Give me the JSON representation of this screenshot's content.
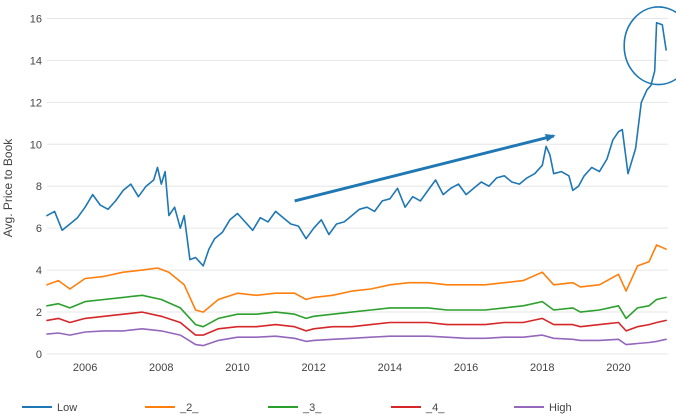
{
  "chart_data": {
    "type": "line",
    "ylabel": "Avg. Price to Book",
    "xlabel": "",
    "title": "",
    "ylim": [
      0,
      16.5
    ],
    "xlim": [
      2005.0,
      2021.3
    ],
    "yticks": [
      0,
      2,
      4,
      6,
      8,
      10,
      12,
      14,
      16
    ],
    "xticks": [
      2006,
      2008,
      2010,
      2012,
      2014,
      2016,
      2018,
      2020
    ],
    "grid": "horizontal",
    "legend_position": "bottom",
    "series": [
      {
        "name": "Low",
        "color": "#1f77b4",
        "points": [
          [
            2005.0,
            6.6
          ],
          [
            2005.2,
            6.8
          ],
          [
            2005.4,
            5.9
          ],
          [
            2005.6,
            6.2
          ],
          [
            2005.8,
            6.5
          ],
          [
            2006.0,
            7.0
          ],
          [
            2006.2,
            7.6
          ],
          [
            2006.4,
            7.1
          ],
          [
            2006.6,
            6.9
          ],
          [
            2006.8,
            7.3
          ],
          [
            2007.0,
            7.8
          ],
          [
            2007.2,
            8.1
          ],
          [
            2007.4,
            7.5
          ],
          [
            2007.6,
            8.0
          ],
          [
            2007.8,
            8.3
          ],
          [
            2007.9,
            8.9
          ],
          [
            2008.0,
            8.1
          ],
          [
            2008.1,
            8.7
          ],
          [
            2008.2,
            6.6
          ],
          [
            2008.35,
            7.0
          ],
          [
            2008.5,
            6.0
          ],
          [
            2008.6,
            6.6
          ],
          [
            2008.75,
            4.5
          ],
          [
            2008.9,
            4.6
          ],
          [
            2009.0,
            4.4
          ],
          [
            2009.1,
            4.2
          ],
          [
            2009.25,
            5.0
          ],
          [
            2009.4,
            5.5
          ],
          [
            2009.6,
            5.8
          ],
          [
            2009.8,
            6.4
          ],
          [
            2010.0,
            6.7
          ],
          [
            2010.2,
            6.3
          ],
          [
            2010.4,
            5.9
          ],
          [
            2010.6,
            6.5
          ],
          [
            2010.8,
            6.3
          ],
          [
            2011.0,
            6.8
          ],
          [
            2011.2,
            6.5
          ],
          [
            2011.4,
            6.2
          ],
          [
            2011.6,
            6.1
          ],
          [
            2011.8,
            5.5
          ],
          [
            2012.0,
            6.0
          ],
          [
            2012.2,
            6.4
          ],
          [
            2012.4,
            5.7
          ],
          [
            2012.6,
            6.2
          ],
          [
            2012.8,
            6.3
          ],
          [
            2013.0,
            6.6
          ],
          [
            2013.2,
            6.9
          ],
          [
            2013.4,
            7.0
          ],
          [
            2013.6,
            6.8
          ],
          [
            2013.8,
            7.3
          ],
          [
            2014.0,
            7.4
          ],
          [
            2014.2,
            7.9
          ],
          [
            2014.4,
            7.0
          ],
          [
            2014.6,
            7.5
          ],
          [
            2014.8,
            7.3
          ],
          [
            2015.0,
            7.8
          ],
          [
            2015.2,
            8.3
          ],
          [
            2015.4,
            7.6
          ],
          [
            2015.6,
            7.9
          ],
          [
            2015.8,
            8.1
          ],
          [
            2016.0,
            7.6
          ],
          [
            2016.2,
            7.9
          ],
          [
            2016.4,
            8.2
          ],
          [
            2016.6,
            8.0
          ],
          [
            2016.8,
            8.4
          ],
          [
            2017.0,
            8.5
          ],
          [
            2017.2,
            8.2
          ],
          [
            2017.4,
            8.1
          ],
          [
            2017.6,
            8.4
          ],
          [
            2017.8,
            8.6
          ],
          [
            2018.0,
            9.0
          ],
          [
            2018.1,
            9.9
          ],
          [
            2018.2,
            9.5
          ],
          [
            2018.3,
            8.6
          ],
          [
            2018.5,
            8.7
          ],
          [
            2018.7,
            8.5
          ],
          [
            2018.8,
            7.8
          ],
          [
            2018.95,
            8.0
          ],
          [
            2019.1,
            8.5
          ],
          [
            2019.3,
            8.9
          ],
          [
            2019.5,
            8.7
          ],
          [
            2019.7,
            9.3
          ],
          [
            2019.85,
            10.2
          ],
          [
            2020.0,
            10.6
          ],
          [
            2020.1,
            10.7
          ],
          [
            2020.25,
            8.6
          ],
          [
            2020.45,
            9.8
          ],
          [
            2020.6,
            12.0
          ],
          [
            2020.75,
            12.6
          ],
          [
            2020.85,
            12.8
          ],
          [
            2020.95,
            13.5
          ],
          [
            2021.0,
            15.8
          ],
          [
            2021.15,
            15.7
          ],
          [
            2021.25,
            14.5
          ]
        ]
      },
      {
        "name": "_2_",
        "color": "#ff7f0e",
        "points": [
          [
            2005.0,
            3.3
          ],
          [
            2005.3,
            3.5
          ],
          [
            2005.6,
            3.1
          ],
          [
            2006.0,
            3.6
          ],
          [
            2006.5,
            3.7
          ],
          [
            2007.0,
            3.9
          ],
          [
            2007.5,
            4.0
          ],
          [
            2007.9,
            4.1
          ],
          [
            2008.2,
            3.9
          ],
          [
            2008.6,
            3.3
          ],
          [
            2008.9,
            2.1
          ],
          [
            2009.1,
            2.0
          ],
          [
            2009.5,
            2.6
          ],
          [
            2010.0,
            2.9
          ],
          [
            2010.5,
            2.8
          ],
          [
            2011.0,
            2.9
          ],
          [
            2011.5,
            2.9
          ],
          [
            2011.8,
            2.6
          ],
          [
            2012.0,
            2.7
          ],
          [
            2012.5,
            2.8
          ],
          [
            2013.0,
            3.0
          ],
          [
            2013.5,
            3.1
          ],
          [
            2014.0,
            3.3
          ],
          [
            2014.5,
            3.4
          ],
          [
            2015.0,
            3.4
          ],
          [
            2015.5,
            3.3
          ],
          [
            2016.0,
            3.3
          ],
          [
            2016.5,
            3.3
          ],
          [
            2017.0,
            3.4
          ],
          [
            2017.5,
            3.5
          ],
          [
            2018.0,
            3.9
          ],
          [
            2018.3,
            3.3
          ],
          [
            2018.8,
            3.4
          ],
          [
            2019.0,
            3.2
          ],
          [
            2019.5,
            3.3
          ],
          [
            2020.0,
            3.8
          ],
          [
            2020.2,
            3.0
          ],
          [
            2020.5,
            4.2
          ],
          [
            2020.8,
            4.4
          ],
          [
            2021.0,
            5.2
          ],
          [
            2021.25,
            5.0
          ]
        ]
      },
      {
        "name": "_3_",
        "color": "#2ca02c",
        "points": [
          [
            2005.0,
            2.3
          ],
          [
            2005.3,
            2.4
          ],
          [
            2005.6,
            2.2
          ],
          [
            2006.0,
            2.5
          ],
          [
            2006.5,
            2.6
          ],
          [
            2007.0,
            2.7
          ],
          [
            2007.5,
            2.8
          ],
          [
            2008.0,
            2.6
          ],
          [
            2008.5,
            2.2
          ],
          [
            2008.9,
            1.4
          ],
          [
            2009.1,
            1.3
          ],
          [
            2009.5,
            1.7
          ],
          [
            2010.0,
            1.9
          ],
          [
            2010.5,
            1.9
          ],
          [
            2011.0,
            2.0
          ],
          [
            2011.5,
            1.9
          ],
          [
            2011.8,
            1.7
          ],
          [
            2012.0,
            1.8
          ],
          [
            2012.5,
            1.9
          ],
          [
            2013.0,
            2.0
          ],
          [
            2013.5,
            2.1
          ],
          [
            2014.0,
            2.2
          ],
          [
            2014.5,
            2.2
          ],
          [
            2015.0,
            2.2
          ],
          [
            2015.5,
            2.1
          ],
          [
            2016.0,
            2.1
          ],
          [
            2016.5,
            2.1
          ],
          [
            2017.0,
            2.2
          ],
          [
            2017.5,
            2.3
          ],
          [
            2018.0,
            2.5
          ],
          [
            2018.3,
            2.1
          ],
          [
            2018.8,
            2.2
          ],
          [
            2019.0,
            2.0
          ],
          [
            2019.5,
            2.1
          ],
          [
            2020.0,
            2.3
          ],
          [
            2020.2,
            1.7
          ],
          [
            2020.5,
            2.2
          ],
          [
            2020.8,
            2.3
          ],
          [
            2021.0,
            2.6
          ],
          [
            2021.25,
            2.7
          ]
        ]
      },
      {
        "name": "_4_",
        "color": "#d62728",
        "points": [
          [
            2005.0,
            1.6
          ],
          [
            2005.3,
            1.7
          ],
          [
            2005.6,
            1.5
          ],
          [
            2006.0,
            1.7
          ],
          [
            2006.5,
            1.8
          ],
          [
            2007.0,
            1.9
          ],
          [
            2007.5,
            2.0
          ],
          [
            2008.0,
            1.8
          ],
          [
            2008.5,
            1.5
          ],
          [
            2008.9,
            0.9
          ],
          [
            2009.1,
            0.9
          ],
          [
            2009.5,
            1.2
          ],
          [
            2010.0,
            1.3
          ],
          [
            2010.5,
            1.3
          ],
          [
            2011.0,
            1.4
          ],
          [
            2011.5,
            1.3
          ],
          [
            2011.8,
            1.1
          ],
          [
            2012.0,
            1.2
          ],
          [
            2012.5,
            1.3
          ],
          [
            2013.0,
            1.3
          ],
          [
            2013.5,
            1.4
          ],
          [
            2014.0,
            1.5
          ],
          [
            2014.5,
            1.5
          ],
          [
            2015.0,
            1.5
          ],
          [
            2015.5,
            1.4
          ],
          [
            2016.0,
            1.4
          ],
          [
            2016.5,
            1.4
          ],
          [
            2017.0,
            1.5
          ],
          [
            2017.5,
            1.5
          ],
          [
            2018.0,
            1.7
          ],
          [
            2018.3,
            1.4
          ],
          [
            2018.8,
            1.4
          ],
          [
            2019.0,
            1.3
          ],
          [
            2019.5,
            1.4
          ],
          [
            2020.0,
            1.5
          ],
          [
            2020.2,
            1.1
          ],
          [
            2020.5,
            1.3
          ],
          [
            2020.8,
            1.4
          ],
          [
            2021.0,
            1.5
          ],
          [
            2021.25,
            1.6
          ]
        ]
      },
      {
        "name": "High",
        "color": "#9467bd",
        "points": [
          [
            2005.0,
            0.95
          ],
          [
            2005.3,
            1.0
          ],
          [
            2005.6,
            0.9
          ],
          [
            2006.0,
            1.05
          ],
          [
            2006.5,
            1.1
          ],
          [
            2007.0,
            1.1
          ],
          [
            2007.5,
            1.2
          ],
          [
            2008.0,
            1.1
          ],
          [
            2008.5,
            0.9
          ],
          [
            2008.9,
            0.45
          ],
          [
            2009.1,
            0.4
          ],
          [
            2009.5,
            0.65
          ],
          [
            2010.0,
            0.8
          ],
          [
            2010.5,
            0.8
          ],
          [
            2011.0,
            0.85
          ],
          [
            2011.5,
            0.75
          ],
          [
            2011.8,
            0.6
          ],
          [
            2012.0,
            0.65
          ],
          [
            2012.5,
            0.7
          ],
          [
            2013.0,
            0.75
          ],
          [
            2013.5,
            0.8
          ],
          [
            2014.0,
            0.85
          ],
          [
            2014.5,
            0.85
          ],
          [
            2015.0,
            0.85
          ],
          [
            2015.5,
            0.8
          ],
          [
            2016.0,
            0.75
          ],
          [
            2016.5,
            0.75
          ],
          [
            2017.0,
            0.8
          ],
          [
            2017.5,
            0.8
          ],
          [
            2018.0,
            0.9
          ],
          [
            2018.3,
            0.75
          ],
          [
            2018.8,
            0.7
          ],
          [
            2019.0,
            0.65
          ],
          [
            2019.5,
            0.65
          ],
          [
            2020.0,
            0.7
          ],
          [
            2020.2,
            0.45
          ],
          [
            2020.5,
            0.5
          ],
          [
            2020.8,
            0.55
          ],
          [
            2021.0,
            0.6
          ],
          [
            2021.25,
            0.7
          ]
        ]
      }
    ],
    "annotations": [
      {
        "type": "arrow",
        "color": "#1f77b4",
        "from": [
          2011.5,
          7.3
        ],
        "to": [
          2018.3,
          10.4
        ]
      },
      {
        "type": "ellipse",
        "color": "#1f77b4",
        "center": [
          2021.05,
          14.7
        ],
        "radius_x": 0.9,
        "radius_y": 1.85
      }
    ]
  }
}
